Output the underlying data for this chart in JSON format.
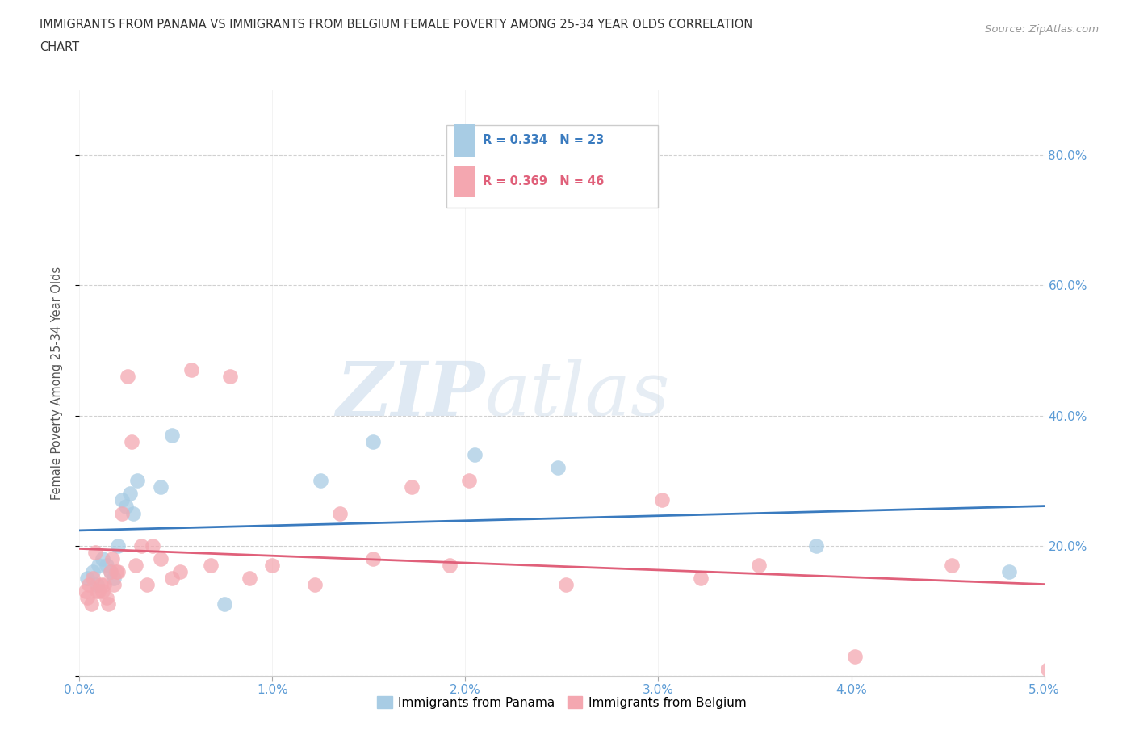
{
  "title_line1": "IMMIGRANTS FROM PANAMA VS IMMIGRANTS FROM BELGIUM FEMALE POVERTY AMONG 25-34 YEAR OLDS CORRELATION",
  "title_line2": "CHART",
  "source": "Source: ZipAtlas.com",
  "ylabel_label": "Female Poverty Among 25-34 Year Olds",
  "xlim": [
    0.0,
    5.0
  ],
  "ylim": [
    0.0,
    90.0
  ],
  "watermark_zip": "ZIP",
  "watermark_atlas": "atlas",
  "legend_panama": "Immigrants from Panama",
  "legend_belgium": "Immigrants from Belgium",
  "r_panama": "R = 0.334",
  "n_panama": "N = 23",
  "r_belgium": "R = 0.369",
  "n_belgium": "N = 46",
  "color_panama": "#a8cce4",
  "color_belgium": "#f4a7b0",
  "color_panama_line": "#3a7bbf",
  "color_belgium_line": "#e0607a",
  "color_axis_labels": "#5b9bd5",
  "color_title": "#333333",
  "color_source": "#999999",
  "panama_x": [
    0.04,
    0.07,
    0.09,
    0.1,
    0.12,
    0.14,
    0.16,
    0.18,
    0.2,
    0.22,
    0.24,
    0.26,
    0.28,
    0.3,
    0.42,
    0.48,
    0.75,
    1.25,
    1.52,
    2.05,
    2.48,
    3.82,
    4.82
  ],
  "panama_y": [
    15,
    16,
    14,
    17,
    18,
    17,
    16,
    15,
    20,
    27,
    26,
    28,
    25,
    30,
    29,
    37,
    11,
    30,
    36,
    34,
    32,
    20,
    16
  ],
  "belgium_x": [
    0.03,
    0.04,
    0.05,
    0.06,
    0.07,
    0.08,
    0.09,
    0.1,
    0.11,
    0.12,
    0.13,
    0.14,
    0.15,
    0.16,
    0.17,
    0.18,
    0.19,
    0.2,
    0.22,
    0.25,
    0.27,
    0.29,
    0.32,
    0.35,
    0.38,
    0.42,
    0.48,
    0.52,
    0.58,
    0.68,
    0.78,
    0.88,
    1.0,
    1.22,
    1.35,
    1.52,
    1.72,
    1.92,
    2.02,
    2.52,
    3.02,
    3.22,
    3.52,
    4.02,
    4.52,
    5.02
  ],
  "belgium_y": [
    13,
    12,
    14,
    11,
    15,
    19,
    13,
    13,
    14,
    13,
    14,
    12,
    11,
    16,
    18,
    14,
    16,
    16,
    25,
    46,
    36,
    17,
    20,
    14,
    20,
    18,
    15,
    16,
    47,
    17,
    46,
    15,
    17,
    14,
    25,
    18,
    29,
    17,
    30,
    14,
    27,
    15,
    17,
    3,
    17,
    1
  ]
}
